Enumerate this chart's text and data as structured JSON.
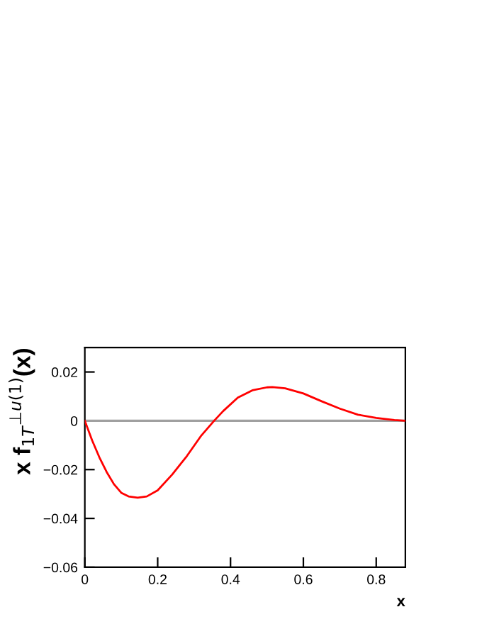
{
  "chart_data": {
    "type": "line",
    "xlabel": "x",
    "ylabel": "x f$_{1T}$$^{⊥u(1)}$(x)",
    "x": [
      0,
      0.01,
      0.02,
      0.04,
      0.06,
      0.08,
      0.1,
      0.12,
      0.145,
      0.17,
      0.2,
      0.24,
      0.28,
      0.32,
      0.355,
      0.38,
      0.42,
      0.46,
      0.5,
      0.515,
      0.55,
      0.6,
      0.65,
      0.7,
      0.75,
      0.8,
      0.85,
      0.88
    ],
    "series": [
      {
        "color": "#ff0000",
        "values": [
          0,
          -0.004,
          -0.008,
          -0.015,
          -0.021,
          -0.026,
          -0.0295,
          -0.031,
          -0.0315,
          -0.031,
          -0.0285,
          -0.022,
          -0.0145,
          -0.006,
          0,
          0.004,
          0.0095,
          0.0125,
          0.0137,
          0.0138,
          0.0133,
          0.0112,
          0.008,
          0.005,
          0.0025,
          0.0012,
          0.0003,
          0
        ]
      }
    ],
    "xlim": [
      0,
      0.88
    ],
    "ylim": [
      -0.06,
      0.03
    ],
    "xticks": [
      0,
      0.2,
      0.4,
      0.6,
      0.8
    ],
    "yticks": [
      -0.06,
      -0.04,
      -0.02,
      0,
      0.02
    ],
    "ref_lines": [
      {
        "axis": "y",
        "value": 0,
        "color": "#a0a0a0"
      }
    ],
    "grid": false,
    "legend": false
  }
}
